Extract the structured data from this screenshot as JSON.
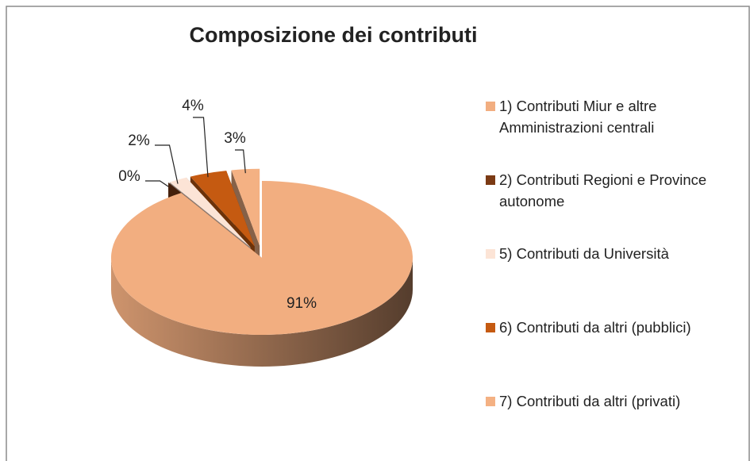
{
  "chart_data": {
    "type": "pie",
    "title": "Composizione dei contributi",
    "categories": [
      "1) Contributi Miur e altre Amministrazioni centrali",
      "2) Contributi Regioni e Province autonome",
      "5) Contributi da Università",
      "6) Contributi da altri (pubblici)",
      "7) Contributi da altri (privati)"
    ],
    "values": [
      91,
      0,
      2,
      4,
      3
    ],
    "value_labels": [
      "91%",
      "0%",
      "2%",
      "4%",
      "3%"
    ],
    "colors": [
      "#F2AE80",
      "#7B3A14",
      "#FCE4D6",
      "#C55A11",
      "#F4B183"
    ],
    "legend": "right"
  }
}
